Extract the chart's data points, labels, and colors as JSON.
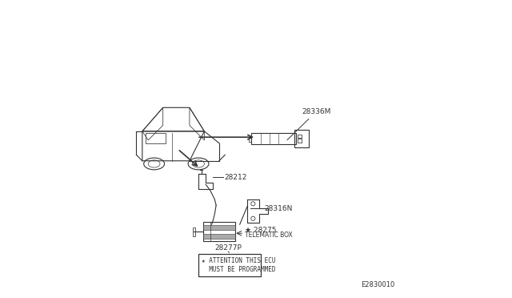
{
  "bg_color": "#ffffff",
  "line_color": "#333333",
  "diagram_id": "E2830010",
  "attention_box": {
    "text1": "★ ATTENTION THIS ECU",
    "text2": "  MUST BE PROGRAMMED"
  }
}
